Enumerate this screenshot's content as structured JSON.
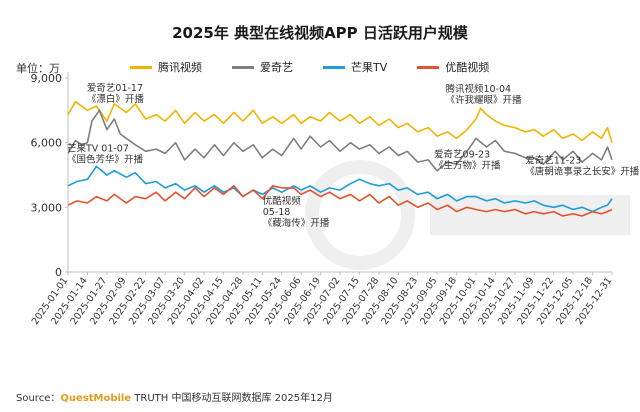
{
  "title": "2025年 典型在线视频APP 日活跃用户规模",
  "unit_label": "单位：万",
  "source": {
    "prefix": "Source：",
    "brand": "QuestMobile",
    "suffix": " TRUTH 中国移动互联网数据库 2025年12月"
  },
  "colors": {
    "tencent": "#f2b400",
    "iqiyi": "#7f7f7f",
    "mango": "#1d9ed8",
    "youku": "#e2532d",
    "axis": "#bfbfbf"
  },
  "chart_data": {
    "type": "line",
    "title": "2025年 典型在线视频APP 日活跃用户规模",
    "ylabel": "单位：万",
    "ylim": [
      0,
      9000
    ],
    "yticks": [
      0,
      3000,
      6000,
      9000
    ],
    "ytick_labels": [
      "0",
      "3,000",
      "6,000",
      "9,000"
    ],
    "xlim": [
      "2025-01-01",
      "2025-12-31"
    ],
    "xticks": [
      "2025-01-01",
      "2025-01-14",
      "2025-01-27",
      "2025-02-09",
      "2025-02-22",
      "2025-03-07",
      "2025-03-20",
      "2025-04-02",
      "2025-04-15",
      "2025-04-28",
      "2025-05-11",
      "2025-05-24",
      "2025-06-06",
      "2025-06-19",
      "2025-07-02",
      "2025-07-15",
      "2025-07-28",
      "2025-08-10",
      "2025-08-23",
      "2025-09-05",
      "2025-09-18",
      "2025-10-01",
      "2025-10-14",
      "2025-10-27",
      "2025-11-09",
      "2025-11-22",
      "2025-12-05",
      "2025-12-18",
      "2025-12-31"
    ],
    "legend_position": "top",
    "grid": false,
    "series": [
      {
        "name": "腾讯视频",
        "key": "tencent",
        "points": [
          [
            "2025-01-01",
            7300
          ],
          [
            "2025-01-06",
            7900
          ],
          [
            "2025-01-14",
            7500
          ],
          [
            "2025-01-20",
            7700
          ],
          [
            "2025-01-27",
            7000
          ],
          [
            "2025-02-01",
            7800
          ],
          [
            "2025-02-09",
            7400
          ],
          [
            "2025-02-15",
            7800
          ],
          [
            "2025-02-22",
            7100
          ],
          [
            "2025-03-01",
            7300
          ],
          [
            "2025-03-07",
            7000
          ],
          [
            "2025-03-14",
            7500
          ],
          [
            "2025-03-20",
            6900
          ],
          [
            "2025-03-27",
            7400
          ],
          [
            "2025-04-02",
            7000
          ],
          [
            "2025-04-09",
            7300
          ],
          [
            "2025-04-15",
            6900
          ],
          [
            "2025-04-22",
            7400
          ],
          [
            "2025-04-28",
            7000
          ],
          [
            "2025-05-05",
            7500
          ],
          [
            "2025-05-11",
            6900
          ],
          [
            "2025-05-18",
            7200
          ],
          [
            "2025-05-24",
            6900
          ],
          [
            "2025-06-01",
            7300
          ],
          [
            "2025-06-06",
            6900
          ],
          [
            "2025-06-12",
            7200
          ],
          [
            "2025-06-19",
            7000
          ],
          [
            "2025-06-25",
            7400
          ],
          [
            "2025-07-02",
            7000
          ],
          [
            "2025-07-09",
            7300
          ],
          [
            "2025-07-15",
            6900
          ],
          [
            "2025-07-22",
            7200
          ],
          [
            "2025-07-28",
            6800
          ],
          [
            "2025-08-04",
            7100
          ],
          [
            "2025-08-10",
            6700
          ],
          [
            "2025-08-16",
            6900
          ],
          [
            "2025-08-23",
            6500
          ],
          [
            "2025-08-30",
            6700
          ],
          [
            "2025-09-05",
            6300
          ],
          [
            "2025-09-12",
            6500
          ],
          [
            "2025-09-18",
            6200
          ],
          [
            "2025-09-25",
            6600
          ],
          [
            "2025-10-01",
            7100
          ],
          [
            "2025-10-04",
            7600
          ],
          [
            "2025-10-08",
            7300
          ],
          [
            "2025-10-14",
            7000
          ],
          [
            "2025-10-20",
            6800
          ],
          [
            "2025-10-27",
            6700
          ],
          [
            "2025-11-03",
            6500
          ],
          [
            "2025-11-09",
            6600
          ],
          [
            "2025-11-15",
            6300
          ],
          [
            "2025-11-22",
            6600
          ],
          [
            "2025-11-28",
            6200
          ],
          [
            "2025-12-05",
            6400
          ],
          [
            "2025-12-11",
            6100
          ],
          [
            "2025-12-18",
            6500
          ],
          [
            "2025-12-24",
            6200
          ],
          [
            "2025-12-28",
            6700
          ],
          [
            "2025-12-31",
            6000
          ]
        ]
      },
      {
        "name": "爱奇艺",
        "key": "iqiyi",
        "points": [
          [
            "2025-01-01",
            5500
          ],
          [
            "2025-01-06",
            6100
          ],
          [
            "2025-01-10",
            5900
          ],
          [
            "2025-01-14",
            6000
          ],
          [
            "2025-01-17",
            7000
          ],
          [
            "2025-01-22",
            7500
          ],
          [
            "2025-01-27",
            6600
          ],
          [
            "2025-02-01",
            7100
          ],
          [
            "2025-02-05",
            6400
          ],
          [
            "2025-02-09",
            6200
          ],
          [
            "2025-02-15",
            5900
          ],
          [
            "2025-02-22",
            5600
          ],
          [
            "2025-03-01",
            5700
          ],
          [
            "2025-03-07",
            5500
          ],
          [
            "2025-03-14",
            6000
          ],
          [
            "2025-03-20",
            5200
          ],
          [
            "2025-03-27",
            5700
          ],
          [
            "2025-04-02",
            5300
          ],
          [
            "2025-04-09",
            5900
          ],
          [
            "2025-04-15",
            5400
          ],
          [
            "2025-04-22",
            6000
          ],
          [
            "2025-04-28",
            5600
          ],
          [
            "2025-05-05",
            5900
          ],
          [
            "2025-05-11",
            5300
          ],
          [
            "2025-05-18",
            5700
          ],
          [
            "2025-05-24",
            5400
          ],
          [
            "2025-06-01",
            6200
          ],
          [
            "2025-06-06",
            5700
          ],
          [
            "2025-06-12",
            6300
          ],
          [
            "2025-06-19",
            5800
          ],
          [
            "2025-06-25",
            6100
          ],
          [
            "2025-07-02",
            5600
          ],
          [
            "2025-07-09",
            6000
          ],
          [
            "2025-07-15",
            5700
          ],
          [
            "2025-07-22",
            5900
          ],
          [
            "2025-07-28",
            5500
          ],
          [
            "2025-08-04",
            5800
          ],
          [
            "2025-08-10",
            5400
          ],
          [
            "2025-08-16",
            5600
          ],
          [
            "2025-08-23",
            5100
          ],
          [
            "2025-08-30",
            5200
          ],
          [
            "2025-09-05",
            4700
          ],
          [
            "2025-09-12",
            5100
          ],
          [
            "2025-09-18",
            5000
          ],
          [
            "2025-09-25",
            5600
          ],
          [
            "2025-10-01",
            6200
          ],
          [
            "2025-10-08",
            5800
          ],
          [
            "2025-10-14",
            6100
          ],
          [
            "2025-10-20",
            5600
          ],
          [
            "2025-10-27",
            5500
          ],
          [
            "2025-11-03",
            5300
          ],
          [
            "2025-11-09",
            5300
          ],
          [
            "2025-11-15",
            5000
          ],
          [
            "2025-11-23",
            5600
          ],
          [
            "2025-11-28",
            5200
          ],
          [
            "2025-12-05",
            5600
          ],
          [
            "2025-12-11",
            5100
          ],
          [
            "2025-12-18",
            5500
          ],
          [
            "2025-12-24",
            5200
          ],
          [
            "2025-12-28",
            5800
          ],
          [
            "2025-12-31",
            5200
          ]
        ]
      },
      {
        "name": "芒果TV",
        "key": "mango",
        "points": [
          [
            "2025-01-01",
            4000
          ],
          [
            "2025-01-07",
            4200
          ],
          [
            "2025-01-14",
            4300
          ],
          [
            "2025-01-20",
            4900
          ],
          [
            "2025-01-27",
            4500
          ],
          [
            "2025-02-01",
            4700
          ],
          [
            "2025-02-09",
            4400
          ],
          [
            "2025-02-15",
            4600
          ],
          [
            "2025-02-22",
            4100
          ],
          [
            "2025-03-01",
            4200
          ],
          [
            "2025-03-07",
            3900
          ],
          [
            "2025-03-14",
            4100
          ],
          [
            "2025-03-20",
            3800
          ],
          [
            "2025-03-27",
            4000
          ],
          [
            "2025-04-02",
            3700
          ],
          [
            "2025-04-09",
            4000
          ],
          [
            "2025-04-15",
            3700
          ],
          [
            "2025-04-22",
            3900
          ],
          [
            "2025-04-28",
            3500
          ],
          [
            "2025-05-05",
            3800
          ],
          [
            "2025-05-11",
            3600
          ],
          [
            "2025-05-18",
            3900
          ],
          [
            "2025-05-24",
            3700
          ],
          [
            "2025-06-01",
            4000
          ],
          [
            "2025-06-06",
            3800
          ],
          [
            "2025-06-12",
            4000
          ],
          [
            "2025-06-19",
            3700
          ],
          [
            "2025-06-25",
            3900
          ],
          [
            "2025-07-02",
            3800
          ],
          [
            "2025-07-09",
            4100
          ],
          [
            "2025-07-15",
            4300
          ],
          [
            "2025-07-22",
            4100
          ],
          [
            "2025-07-28",
            4000
          ],
          [
            "2025-08-04",
            4100
          ],
          [
            "2025-08-10",
            3800
          ],
          [
            "2025-08-16",
            3900
          ],
          [
            "2025-08-23",
            3600
          ],
          [
            "2025-08-30",
            3700
          ],
          [
            "2025-09-05",
            3400
          ],
          [
            "2025-09-12",
            3600
          ],
          [
            "2025-09-18",
            3300
          ],
          [
            "2025-09-25",
            3500
          ],
          [
            "2025-10-01",
            3500
          ],
          [
            "2025-10-08",
            3300
          ],
          [
            "2025-10-14",
            3400
          ],
          [
            "2025-10-20",
            3200
          ],
          [
            "2025-10-27",
            3300
          ],
          [
            "2025-11-03",
            3200
          ],
          [
            "2025-11-09",
            3300
          ],
          [
            "2025-11-15",
            3100
          ],
          [
            "2025-11-22",
            3000
          ],
          [
            "2025-11-28",
            3100
          ],
          [
            "2025-12-05",
            2900
          ],
          [
            "2025-12-11",
            3000
          ],
          [
            "2025-12-18",
            2800
          ],
          [
            "2025-12-24",
            3000
          ],
          [
            "2025-12-28",
            3100
          ],
          [
            "2025-12-31",
            3400
          ]
        ]
      },
      {
        "name": "优酷视频",
        "key": "youku",
        "points": [
          [
            "2025-01-01",
            3100
          ],
          [
            "2025-01-07",
            3300
          ],
          [
            "2025-01-14",
            3200
          ],
          [
            "2025-01-20",
            3500
          ],
          [
            "2025-01-27",
            3300
          ],
          [
            "2025-02-01",
            3600
          ],
          [
            "2025-02-09",
            3200
          ],
          [
            "2025-02-15",
            3500
          ],
          [
            "2025-02-22",
            3400
          ],
          [
            "2025-03-01",
            3700
          ],
          [
            "2025-03-07",
            3300
          ],
          [
            "2025-03-14",
            3700
          ],
          [
            "2025-03-20",
            3400
          ],
          [
            "2025-03-27",
            3900
          ],
          [
            "2025-04-02",
            3500
          ],
          [
            "2025-04-09",
            3900
          ],
          [
            "2025-04-15",
            3600
          ],
          [
            "2025-04-22",
            4000
          ],
          [
            "2025-04-28",
            3500
          ],
          [
            "2025-05-05",
            3800
          ],
          [
            "2025-05-11",
            3400
          ],
          [
            "2025-05-18",
            4000
          ],
          [
            "2025-05-24",
            3900
          ],
          [
            "2025-06-01",
            3900
          ],
          [
            "2025-06-06",
            3600
          ],
          [
            "2025-06-12",
            3800
          ],
          [
            "2025-06-19",
            3500
          ],
          [
            "2025-06-25",
            3700
          ],
          [
            "2025-07-02",
            3400
          ],
          [
            "2025-07-09",
            3600
          ],
          [
            "2025-07-15",
            3300
          ],
          [
            "2025-07-22",
            3600
          ],
          [
            "2025-07-28",
            3200
          ],
          [
            "2025-08-04",
            3500
          ],
          [
            "2025-08-10",
            3100
          ],
          [
            "2025-08-16",
            3300
          ],
          [
            "2025-08-23",
            3000
          ],
          [
            "2025-08-30",
            3200
          ],
          [
            "2025-09-05",
            2900
          ],
          [
            "2025-09-12",
            3100
          ],
          [
            "2025-09-18",
            2800
          ],
          [
            "2025-09-25",
            3000
          ],
          [
            "2025-10-01",
            2900
          ],
          [
            "2025-10-08",
            2800
          ],
          [
            "2025-10-14",
            2900
          ],
          [
            "2025-10-20",
            2800
          ],
          [
            "2025-10-27",
            2900
          ],
          [
            "2025-11-03",
            2700
          ],
          [
            "2025-11-09",
            2800
          ],
          [
            "2025-11-15",
            2700
          ],
          [
            "2025-11-22",
            2800
          ],
          [
            "2025-11-28",
            2600
          ],
          [
            "2025-12-05",
            2700
          ],
          [
            "2025-12-11",
            2600
          ],
          [
            "2025-12-18",
            2800
          ],
          [
            "2025-12-24",
            2700
          ],
          [
            "2025-12-28",
            2800
          ],
          [
            "2025-12-31",
            2900
          ]
        ]
      }
    ],
    "annotations": [
      {
        "key": "iqiyi-0117",
        "date": "2025-01-17",
        "series": "iqiyi",
        "lines": [
          "爱奇艺01-17",
          "《漂白》开播"
        ]
      },
      {
        "key": "mango-0107",
        "date": "2025-01-07",
        "series": "mango",
        "lines": [
          "芒果TV 01-07",
          "《国色芳华》开播"
        ]
      },
      {
        "key": "youku-0518",
        "date": "2025-05-18",
        "series": "youku",
        "lines": [
          "优酷视频",
          "05-18",
          "《藏海传》开播"
        ]
      },
      {
        "key": "tencent-1004",
        "date": "2025-10-04",
        "series": "tencent",
        "lines": [
          "腾讯视频10-04",
          "《许我耀眼》开播"
        ]
      },
      {
        "key": "iqiyi-0923",
        "date": "2025-09-23",
        "series": "iqiyi",
        "lines": [
          "爱奇艺09-23",
          "《生万物》开播"
        ]
      },
      {
        "key": "iqiyi-1123",
        "date": "2025-11-23",
        "series": "iqiyi",
        "lines": [
          "爱奇艺11-23",
          "《唐朝诡事录之长安》开播"
        ]
      }
    ]
  }
}
